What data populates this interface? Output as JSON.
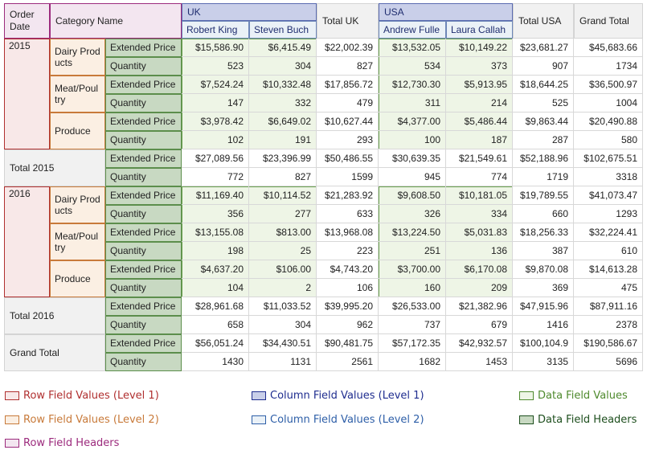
{
  "headers": {
    "order_date": "Order Date",
    "category_name": "Category Name",
    "uk": "UK",
    "usa": "USA",
    "total_uk": "Total UK",
    "total_usa": "Total USA",
    "grand_total": "Grand Total",
    "employees": [
      "Robert King",
      "Steven Buch",
      "Andrew Fulle",
      "Laura Callah"
    ]
  },
  "years": [
    "2015",
    "2016"
  ],
  "categories": [
    "Dairy Products",
    "Meat/Poultry",
    "Produce"
  ],
  "measures": [
    "Extended Price",
    "Quantity"
  ],
  "row_labels": {
    "total_2015": "Total 2015",
    "total_2016": "Total 2016",
    "grand_total": "Grand Total"
  },
  "rows": [
    [
      "$15,586.90",
      "$6,415.49",
      "$22,002.39",
      "$13,532.05",
      "$10,149.22",
      "$23,681.27",
      "$45,683.66"
    ],
    [
      "523",
      "304",
      "827",
      "534",
      "373",
      "907",
      "1734"
    ],
    [
      "$7,524.24",
      "$10,332.48",
      "$17,856.72",
      "$12,730.30",
      "$5,913.95",
      "$18,644.25",
      "$36,500.97"
    ],
    [
      "147",
      "332",
      "479",
      "311",
      "214",
      "525",
      "1004"
    ],
    [
      "$3,978.42",
      "$6,649.02",
      "$10,627.44",
      "$4,377.00",
      "$5,486.44",
      "$9,863.44",
      "$20,490.88"
    ],
    [
      "102",
      "191",
      "293",
      "100",
      "187",
      "287",
      "580"
    ],
    [
      "$27,089.56",
      "$23,396.99",
      "$50,486.55",
      "$30,639.35",
      "$21,549.61",
      "$52,188.96",
      "$102,675.51"
    ],
    [
      "772",
      "827",
      "1599",
      "945",
      "774",
      "1719",
      "3318"
    ],
    [
      "$11,169.40",
      "$10,114.52",
      "$21,283.92",
      "$9,608.50",
      "$10,181.05",
      "$19,789.55",
      "$41,073.47"
    ],
    [
      "356",
      "277",
      "633",
      "326",
      "334",
      "660",
      "1293"
    ],
    [
      "$13,155.08",
      "$813.00",
      "$13,968.08",
      "$13,224.50",
      "$5,031.83",
      "$18,256.33",
      "$32,224.41"
    ],
    [
      "198",
      "25",
      "223",
      "251",
      "136",
      "387",
      "610"
    ],
    [
      "$4,637.20",
      "$106.00",
      "$4,743.20",
      "$3,700.00",
      "$6,170.08",
      "$9,870.08",
      "$14,613.28"
    ],
    [
      "104",
      "2",
      "106",
      "160",
      "209",
      "369",
      "475"
    ],
    [
      "$28,961.68",
      "$11,033.52",
      "$39,995.20",
      "$26,533.00",
      "$21,382.96",
      "$47,915.96",
      "$87,911.16"
    ],
    [
      "658",
      "304",
      "962",
      "737",
      "679",
      "1416",
      "2378"
    ],
    [
      "$56,051.24",
      "$34,430.51",
      "$90,481.75",
      "$57,172.35",
      "$42,932.57",
      "$100,104.9",
      "$190,586.67"
    ],
    [
      "1430",
      "1131",
      "2561",
      "1682",
      "1453",
      "3135",
      "5696"
    ]
  ],
  "legend": [
    {
      "label": "Row Field Values (Level 1)",
      "color": "#b03030",
      "fill": "#f8e8e8"
    },
    {
      "label": "Column Field Values (Level 1)",
      "color": "#1f2d8f",
      "fill": "#c9cfe9"
    },
    {
      "label": "Data Field Values",
      "color": "#4f8a2e",
      "fill": "#eef5e6"
    },
    {
      "label": "Row Field Values (Level 2)",
      "color": "#c87a3a",
      "fill": "#fbefe3"
    },
    {
      "label": "Column Field Values (Level 2)",
      "color": "#2e5fa8",
      "fill": "#eaf1f7"
    },
    {
      "label": "Data Field Headers",
      "color": "#1e4f1e",
      "fill": "#c8d9c2"
    },
    {
      "label": "Row Field Headers",
      "color": "#9c2b7d",
      "fill": "#f3e6f0"
    }
  ]
}
